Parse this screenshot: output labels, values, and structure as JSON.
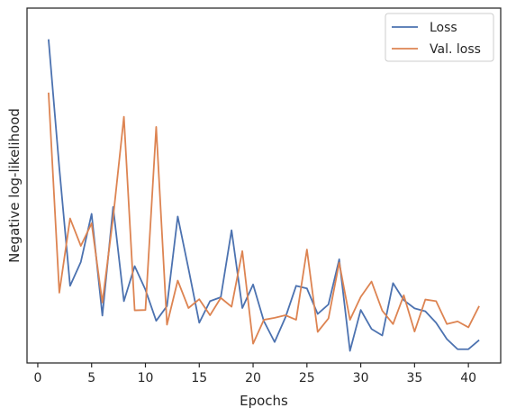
{
  "chart_data": {
    "type": "line",
    "xlabel": "Epochs",
    "ylabel": "Negative log-likelihood",
    "xlim": [
      -1,
      43
    ],
    "ylim": [
      0,
      100
    ],
    "xticks": [
      0,
      5,
      10,
      15,
      20,
      25,
      30,
      35,
      40
    ],
    "yticks_shown": false,
    "grid": false,
    "legend_position": "top-right",
    "x": [
      1,
      2,
      3,
      4,
      5,
      6,
      7,
      8,
      9,
      10,
      11,
      12,
      13,
      14,
      15,
      16,
      17,
      18,
      19,
      20,
      21,
      22,
      23,
      24,
      25,
      26,
      27,
      28,
      29,
      30,
      31,
      32,
      33,
      34,
      35,
      36,
      37,
      38,
      39,
      40,
      41
    ],
    "series": [
      {
        "name": "Loss",
        "color": "#4c72b0",
        "values": [
          96.8,
          57.5,
          21.4,
          28.7,
          43.4,
          12.3,
          45.5,
          16.7,
          27.4,
          20.2,
          10.7,
          15.2,
          42.6,
          26.6,
          10.1,
          16.7,
          17.9,
          38.4,
          14.6,
          21.8,
          10.6,
          4.2,
          11.7,
          21.4,
          20.6,
          12.8,
          15.7,
          29.5,
          1.5,
          14.0,
          8.2,
          6.2,
          22.2,
          17.0,
          14.5,
          13.6,
          10.1,
          5.1,
          2.0,
          2.0,
          4.8
        ]
      },
      {
        "name": "Val. loss",
        "color": "#dd8452",
        "values": [
          80.5,
          19.3,
          42.0,
          33.6,
          40.5,
          16.3,
          42.3,
          73.1,
          13.9,
          14.0,
          70.0,
          9.5,
          23.0,
          14.6,
          17.3,
          12.4,
          17.7,
          15.0,
          32.0,
          3.7,
          11.0,
          11.6,
          12.4,
          11.0,
          32.5,
          7.3,
          11.4,
          28.5,
          11.0,
          18.0,
          22.7,
          13.8,
          9.7,
          18.5,
          7.4,
          17.2,
          16.7,
          9.7,
          10.5,
          8.7,
          15.2
        ]
      }
    ]
  }
}
